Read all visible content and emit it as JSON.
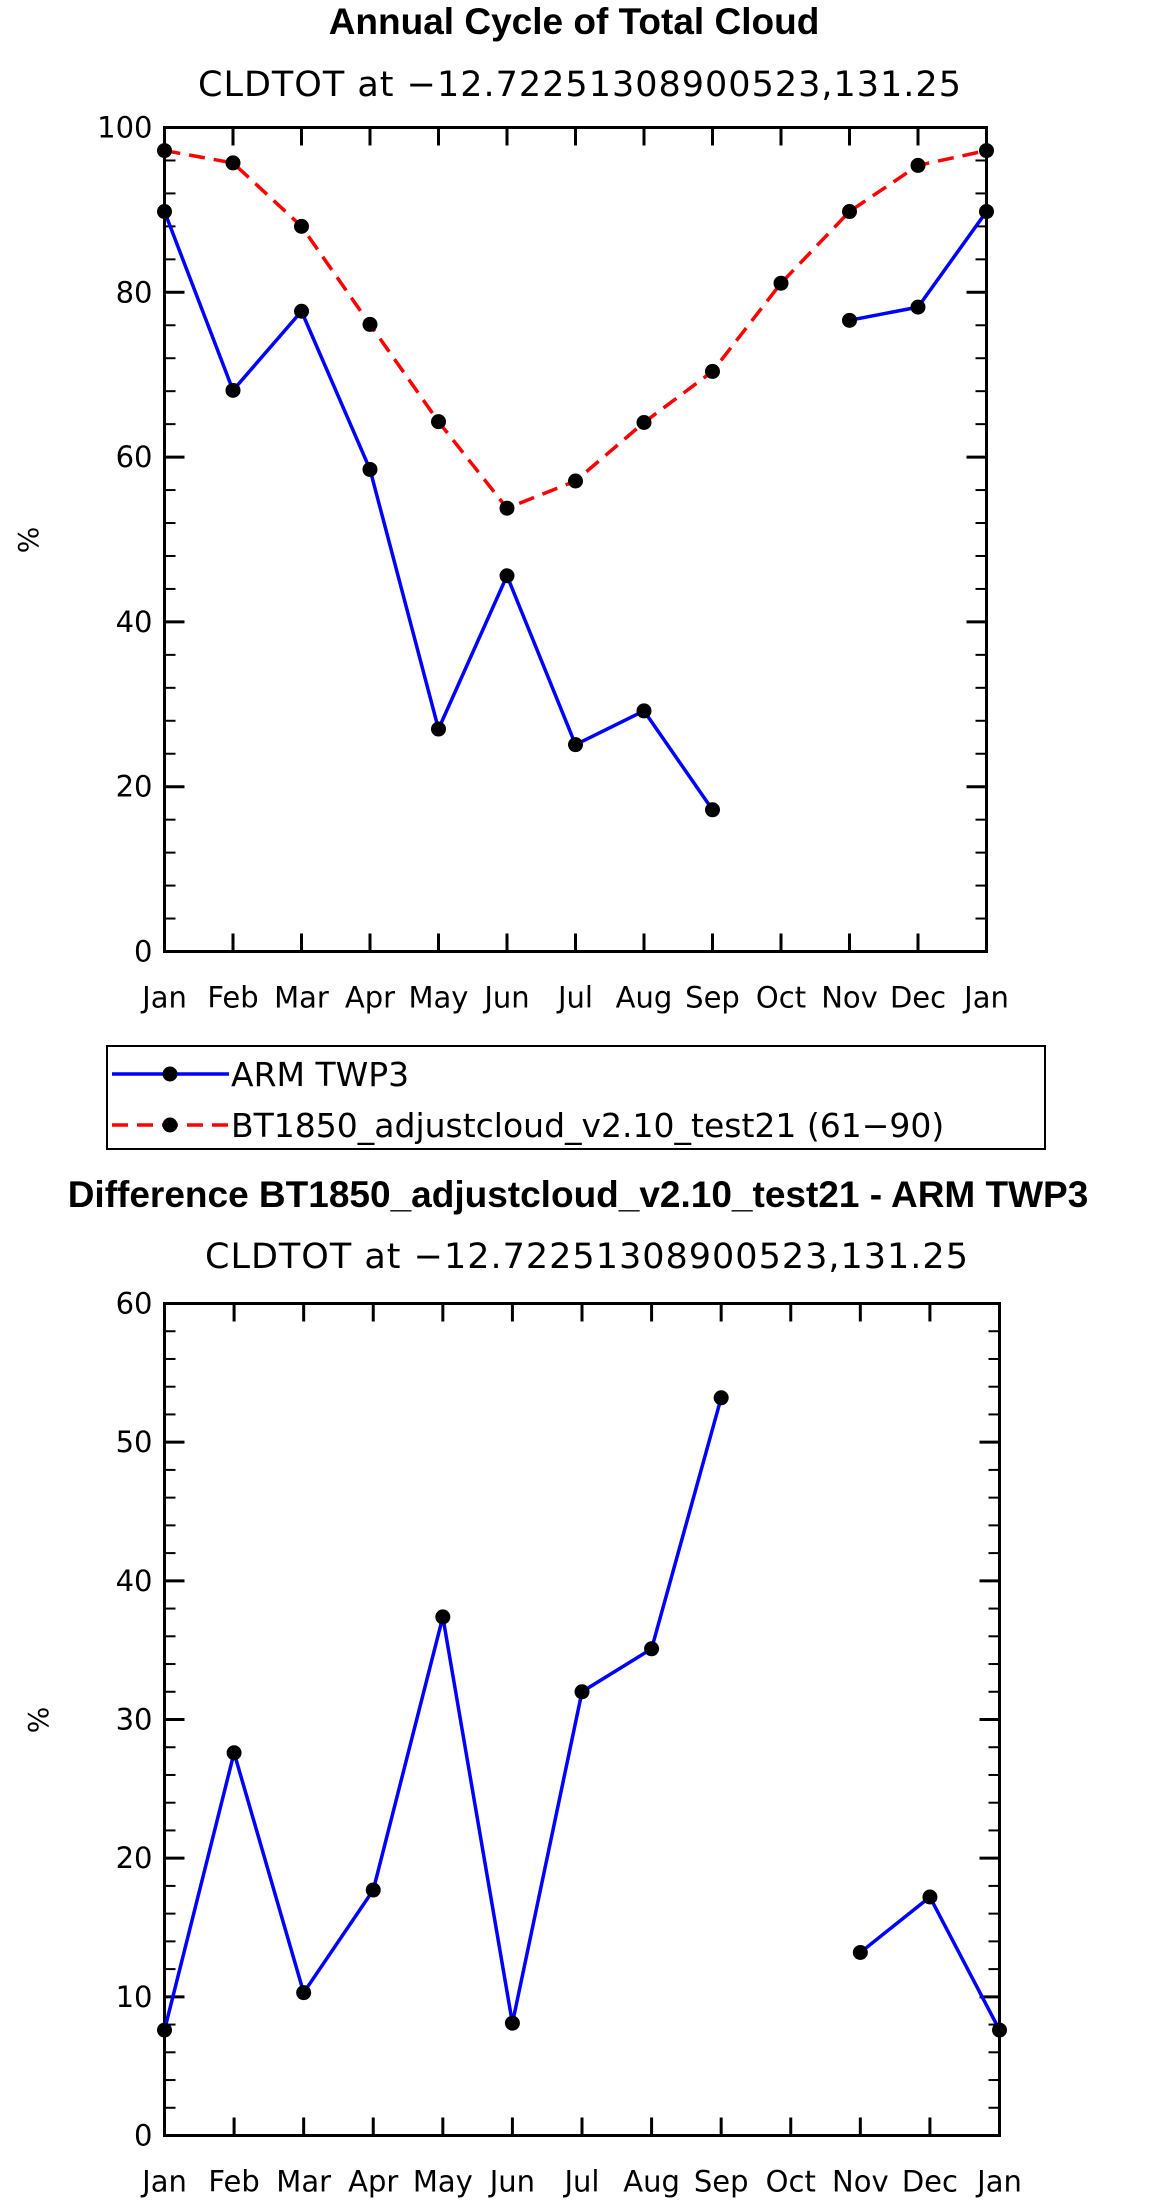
{
  "chart_data": [
    {
      "type": "line",
      "title": "Annual Cycle of Total Cloud",
      "subtitle": "CLDTOT at −12.72251308900523,131.25",
      "xlabel": "",
      "ylabel": "%",
      "ylim": [
        0,
        100
      ],
      "yticks": [
        0,
        20,
        40,
        60,
        80,
        100
      ],
      "categories": [
        "Jan",
        "Feb",
        "Mar",
        "Apr",
        "May",
        "Jun",
        "Jul",
        "Aug",
        "Sep",
        "Oct",
        "Nov",
        "Dec",
        "Jan"
      ],
      "grid": false,
      "series": [
        {
          "name": "ARM TWP3",
          "color": "#0000ff",
          "dash": "solid",
          "values": [
            89.8,
            68.1,
            77.7,
            58.5,
            27.0,
            45.6,
            25.1,
            29.2,
            17.2,
            null,
            76.6,
            78.2,
            89.8
          ]
        },
        {
          "name": "BT1850_adjustcloud_v2.10_test21 (61−90)",
          "color": "#ff0000",
          "dash": "dashed",
          "values": [
            97.2,
            95.7,
            88.0,
            76.1,
            64.3,
            53.8,
            57.1,
            64.2,
            70.4,
            81.1,
            89.8,
            95.4,
            97.2
          ]
        }
      ]
    },
    {
      "type": "line",
      "title": "Difference BT1850_adjustcloud_v2.10_test21 - ARM TWP3",
      "subtitle": "CLDTOT at −12.72251308900523,131.25",
      "xlabel": "",
      "ylabel": "%",
      "ylim": [
        0,
        60
      ],
      "yticks": [
        0,
        10,
        20,
        30,
        40,
        50,
        60
      ],
      "categories": [
        "Jan",
        "Feb",
        "Mar",
        "Apr",
        "May",
        "Jun",
        "Jul",
        "Aug",
        "Sep",
        "Oct",
        "Nov",
        "Dec",
        "Jan"
      ],
      "grid": false,
      "series": [
        {
          "color": "#0000ff",
          "dash": "solid",
          "values": [
            7.6,
            27.6,
            10.3,
            17.7,
            37.4,
            8.1,
            32.0,
            35.1,
            53.2,
            null,
            13.2,
            17.2,
            7.6
          ]
        }
      ]
    }
  ],
  "legend": {
    "items": [
      {
        "label": "ARM TWP3",
        "color": "#0000ff",
        "dash": "solid"
      },
      {
        "label": "BT1850_adjustcloud_v2.10_test21 (61−90)",
        "color": "#ff0000",
        "dash": "dashed"
      }
    ]
  }
}
